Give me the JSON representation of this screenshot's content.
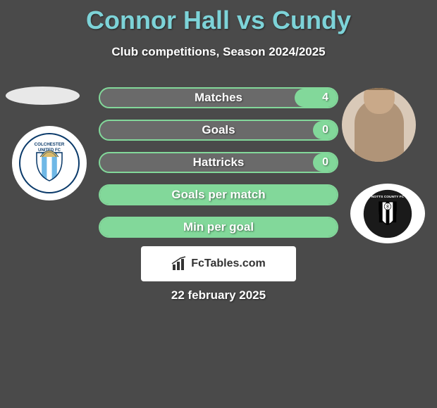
{
  "title": "Connor Hall vs Cundy",
  "subtitle": "Club competitions, Season 2024/2025",
  "stats": [
    {
      "label": "Matches",
      "value_right": "4",
      "fill_percent": 18
    },
    {
      "label": "Goals",
      "value_right": "0",
      "fill_percent": 10
    },
    {
      "label": "Hattricks",
      "value_right": "0",
      "fill_percent": 10
    },
    {
      "label": "Goals per match",
      "value_right": "",
      "fill_percent": 100
    },
    {
      "label": "Min per goal",
      "value_right": "",
      "fill_percent": 100
    }
  ],
  "style": {
    "title_color": "#7dd3d8",
    "row_border": "#82d89a",
    "row_fill": "#82d89a",
    "row_bg": "#6a6a6a",
    "page_bg": "#4a4a4a",
    "text_color": "#ffffff"
  },
  "players": {
    "left": {
      "name": "Connor Hall",
      "club": "Colchester United FC"
    },
    "right": {
      "name": "Cundy",
      "club": "Notts County FC"
    }
  },
  "footer_brand": "FcTables.com",
  "footer_date": "22 february 2025"
}
